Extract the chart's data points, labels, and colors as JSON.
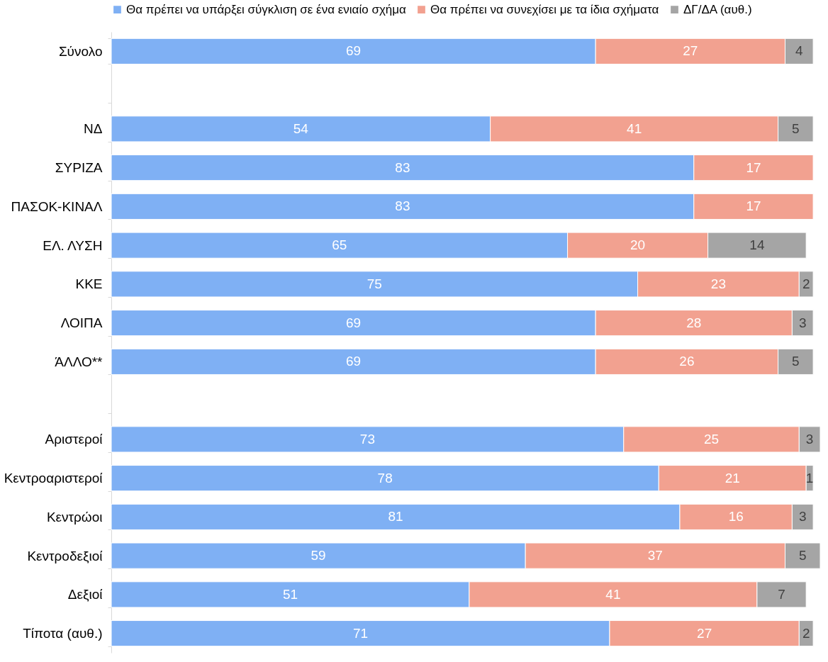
{
  "chart_data": {
    "type": "bar",
    "orientation": "horizontal",
    "stacked": true,
    "data_labels": true,
    "legend": "top",
    "grid": false,
    "tick_labels": "y",
    "xlim": [
      0,
      101
    ],
    "categories": [
      "Σύνολο",
      null,
      "ΝΔ",
      "ΣΥΡΙΖΑ",
      "ΠΑΣΟΚ-ΚΙΝΑΛ",
      "ΕΛ. ΛΥΣΗ",
      "ΚΚΕ",
      "ΛΟΙΠΑ",
      "ΆΛΛΟ**",
      null,
      "Αριστεροί",
      "Κεντροαριστεροί",
      "Κεντρώοι",
      "Κεντροδεξιοί",
      "Δεξιοί",
      "Τίποτα (αυθ.)"
    ],
    "series": [
      {
        "name": "Θα πρέπει να υπάρξει σύγκλιση σε ένα ενιαίο σχήμα",
        "color": "#7fb0f4",
        "values": [
          69,
          null,
          54,
          83,
          83,
          65,
          75,
          69,
          69,
          null,
          73,
          78,
          81,
          59,
          51,
          71
        ]
      },
      {
        "name": "Θα πρέπει να συνεχίσει με τα ίδια σχήματα",
        "color": "#f2a190",
        "values": [
          27,
          null,
          41,
          17,
          17,
          20,
          23,
          28,
          26,
          null,
          25,
          21,
          16,
          37,
          41,
          27
        ]
      },
      {
        "name": "ΔΓ/ΔΑ (αυθ.)",
        "color": "#a5a5a5",
        "values": [
          4,
          null,
          5,
          null,
          null,
          14,
          2,
          3,
          5,
          null,
          3,
          1,
          3,
          5,
          7,
          2
        ]
      }
    ]
  }
}
